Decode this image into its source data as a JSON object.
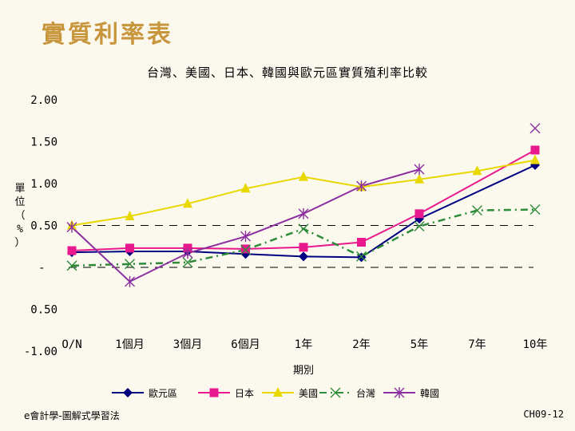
{
  "slide": {
    "title": "實質利率表",
    "footer_left": "e會計學-圖解式學習法",
    "footer_right": "CH09-12"
  },
  "chart_data": {
    "type": "line",
    "title": "台灣、美國、日本、韓國與歐元區實質殖利率比較",
    "xlabel": "期別",
    "ylabel": "單位（%）",
    "categories": [
      "O/N",
      "1個月",
      "3個月",
      "6個月",
      "1年",
      "2年",
      "5年",
      "7年",
      "10年"
    ],
    "y_tick_labels": [
      "2.00",
      "1.50",
      "1.00",
      "0.50",
      "-",
      "0.50",
      "-1.00"
    ],
    "ylim": [
      -1.0,
      2.0
    ],
    "legend_position": "bottom",
    "reference_lines": [
      0.5,
      0.0
    ],
    "series": [
      {
        "name": "歐元區",
        "color": "#000080",
        "marker": "diamond",
        "dash": "solid",
        "values": [
          0.18,
          0.19,
          0.19,
          0.16,
          0.13,
          0.12,
          0.58,
          null,
          1.22
        ]
      },
      {
        "name": "日本",
        "color": "#e8198c",
        "marker": "square",
        "dash": "solid",
        "values": [
          0.2,
          0.23,
          0.23,
          0.22,
          0.24,
          0.3,
          0.64,
          null,
          1.4
        ]
      },
      {
        "name": "美國",
        "color": "#e8d800",
        "marker": "triangle",
        "dash": "solid",
        "values": [
          0.5,
          0.61,
          0.76,
          0.94,
          1.08,
          0.96,
          1.05,
          1.15,
          1.28
        ]
      },
      {
        "name": "台灣",
        "color": "#2e8b3a",
        "marker": "x",
        "dash": "dashdot",
        "values": [
          0.02,
          0.04,
          0.06,
          0.21,
          0.46,
          0.13,
          0.49,
          0.68,
          0.69
        ]
      },
      {
        "name": "韓國",
        "color": "#8b2fa0",
        "marker": "star",
        "dash": "solid",
        "values": [
          0.48,
          -0.17,
          0.17,
          0.37,
          0.64,
          0.97,
          1.17,
          null,
          null
        ]
      }
    ],
    "extra_points": [
      {
        "series": "韓國",
        "category": "10年",
        "value": 1.66
      }
    ]
  }
}
